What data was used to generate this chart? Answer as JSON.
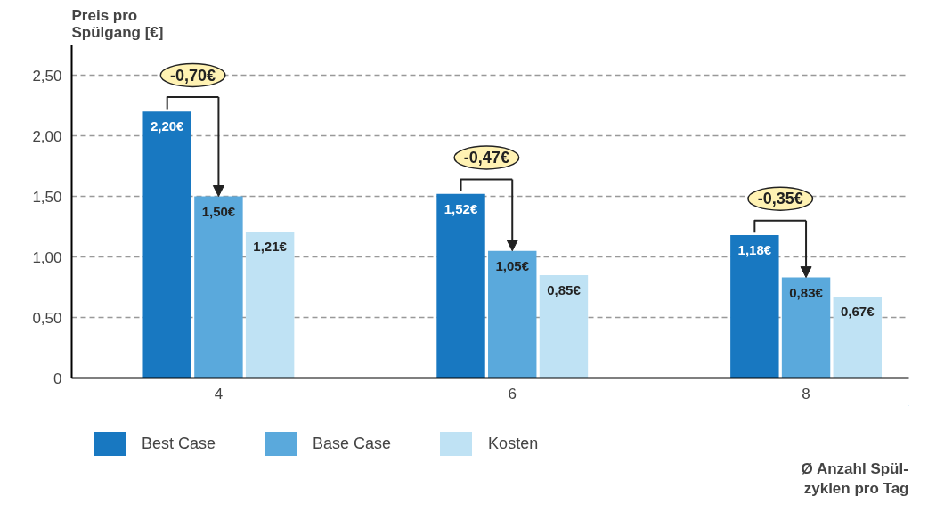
{
  "chart_data": {
    "type": "bar",
    "xlabel": "Ø Anzahl Spül-\nzyklen pro Tag",
    "ylabel": "Preis pro\nSpülgang [€]",
    "categories": [
      "4",
      "6",
      "8"
    ],
    "series": [
      {
        "name": "Best Case",
        "color": "#1878c1",
        "values": [
          2.2,
          1.52,
          1.18
        ],
        "value_labels": [
          "2,20€",
          "1,52€",
          "1,18€"
        ]
      },
      {
        "name": "Base Case",
        "color": "#5aa9dc",
        "values": [
          1.5,
          1.05,
          0.83
        ],
        "value_labels": [
          "1,50€",
          "1,05€",
          "0,83€"
        ]
      },
      {
        "name": "Kosten",
        "color": "#bfe2f4",
        "values": [
          1.21,
          0.85,
          0.67
        ],
        "value_labels": [
          "1,21€",
          "0,85€",
          "0,67€"
        ]
      }
    ],
    "ylim": [
      0,
      2.75
    ],
    "yticks": [
      0,
      {
        "value": 0.5,
        "label": "0,50"
      },
      {
        "value": 1.0,
        "label": "1,00"
      },
      {
        "value": 1.5,
        "label": "1,50"
      },
      {
        "value": 2.0,
        "label": "2,00"
      },
      {
        "value": 2.5,
        "label": "2,50"
      }
    ],
    "grid": "y",
    "legend": "bottom",
    "annotations": [
      {
        "text": "-0,70€",
        "x": "4",
        "y": 1.5
      },
      {
        "text": "-0,47€",
        "x": "6",
        "y": 1.05
      },
      {
        "text": "-0,35€",
        "x": "8",
        "y": 0.83
      }
    ]
  }
}
